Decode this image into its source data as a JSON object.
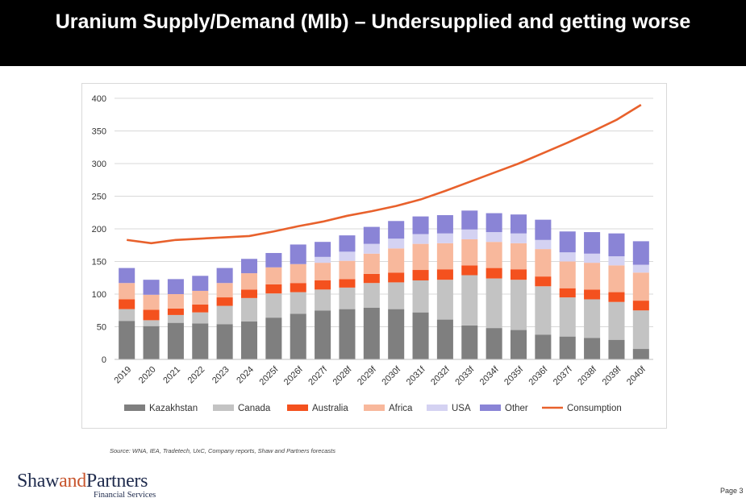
{
  "header": {
    "title": "Uranium Supply/Demand (Mlb) – Undersupplied and getting worse"
  },
  "chart_data": {
    "type": "bar",
    "stacked": true,
    "title": "",
    "xlabel": "",
    "ylabel": "",
    "ylim": [
      0,
      400
    ],
    "yticks": [
      0,
      50,
      100,
      150,
      200,
      250,
      300,
      350,
      400
    ],
    "grid": true,
    "legend_position": "bottom",
    "categories": [
      "2019",
      "2020",
      "2021",
      "2022",
      "2023",
      "2024",
      "2025f",
      "2026f",
      "2027f",
      "2028f",
      "2029f",
      "2030f",
      "2031f",
      "2032f",
      "2033f",
      "2034f",
      "2035f",
      "2036f",
      "2037f",
      "2038f",
      "2039f",
      "2040f"
    ],
    "series": [
      {
        "name": "Kazakhstan",
        "color": "#7f7f7f",
        "values": [
          59,
          51,
          56,
          55,
          54,
          58,
          64,
          70,
          75,
          77,
          79,
          77,
          72,
          61,
          52,
          48,
          45,
          38,
          35,
          33,
          30,
          16
        ]
      },
      {
        "name": "Canada",
        "color": "#c3c3c3",
        "values": [
          18,
          9,
          12,
          17,
          28,
          36,
          37,
          33,
          32,
          33,
          38,
          41,
          49,
          61,
          77,
          76,
          77,
          74,
          60,
          59,
          58,
          59
        ]
      },
      {
        "name": "Australia",
        "color": "#f4511e",
        "values": [
          15,
          16,
          10,
          12,
          13,
          13,
          14,
          14,
          14,
          13,
          14,
          15,
          16,
          16,
          15,
          16,
          16,
          15,
          14,
          15,
          15,
          15
        ]
      },
      {
        "name": "Africa",
        "color": "#f8b89c",
        "values": [
          25,
          23,
          22,
          21,
          22,
          25,
          26,
          29,
          27,
          28,
          31,
          37,
          40,
          40,
          40,
          40,
          40,
          42,
          41,
          41,
          41,
          43
        ]
      },
      {
        "name": "USA",
        "color": "#d4d2f2",
        "values": [
          0,
          0,
          0,
          0,
          0,
          0,
          0,
          0,
          9,
          14,
          15,
          15,
          15,
          15,
          15,
          15,
          15,
          14,
          14,
          14,
          14,
          12
        ]
      },
      {
        "name": "Other",
        "color": "#8a84d6",
        "values": [
          23,
          23,
          23,
          23,
          23,
          22,
          22,
          30,
          23,
          25,
          26,
          27,
          27,
          28,
          29,
          29,
          29,
          31,
          32,
          33,
          35,
          36
        ]
      }
    ],
    "line_series": [
      {
        "name": "Consumption",
        "color": "#e8612c",
        "values": [
          183,
          178,
          183,
          185,
          187,
          189,
          196,
          204,
          211,
          220,
          227,
          235,
          245,
          258,
          272,
          286,
          300,
          316,
          332,
          349,
          367,
          390
        ]
      }
    ]
  },
  "footnote": {
    "source": "Source: WNA, IEA, Tradetech, UxC, Company reports, Shaw and Partners forecasts"
  },
  "logo": {
    "part1": "Shaw",
    "part2": "and",
    "part3": "Partners",
    "tagline": "Financial Services"
  },
  "footer": {
    "page_label": "Page  3"
  }
}
